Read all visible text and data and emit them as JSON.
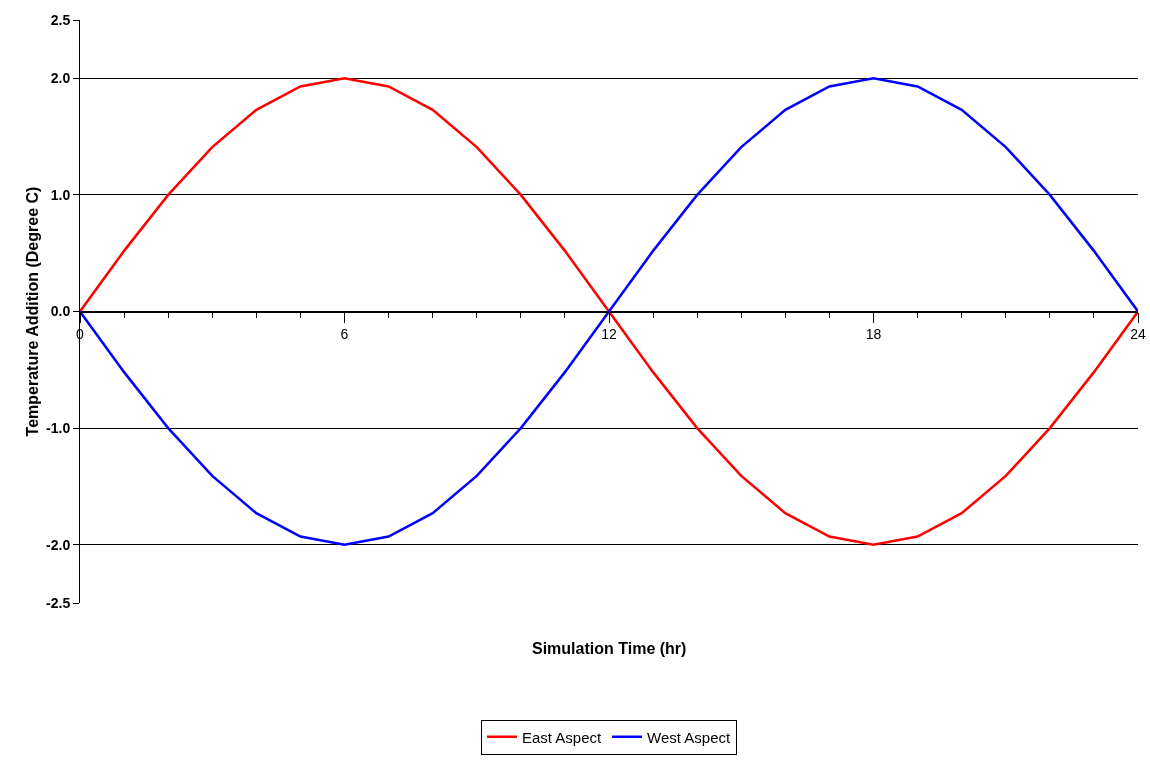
{
  "chart_data": {
    "type": "line",
    "xlabel": "Simulation Time (hr)",
    "ylabel": "Temperature Addition (Degree C)",
    "x": [
      0,
      1,
      2,
      3,
      4,
      5,
      6,
      7,
      8,
      9,
      10,
      11,
      12,
      13,
      14,
      15,
      16,
      17,
      18,
      19,
      20,
      21,
      22,
      23,
      24
    ],
    "series": [
      {
        "name": "East Aspect",
        "color": "#ff0000",
        "values": [
          0,
          0.52,
          1.0,
          1.41,
          1.73,
          1.93,
          2.0,
          1.93,
          1.73,
          1.41,
          1.0,
          0.52,
          0,
          -0.52,
          -1.0,
          -1.41,
          -1.73,
          -1.93,
          -2.0,
          -1.93,
          -1.73,
          -1.41,
          -1.0,
          -0.52,
          0
        ]
      },
      {
        "name": "West Aspect",
        "color": "#0000ff",
        "values": [
          0,
          -0.52,
          -1.0,
          -1.41,
          -1.73,
          -1.93,
          -2.0,
          -1.93,
          -1.73,
          -1.41,
          -1.0,
          -0.52,
          0,
          0.52,
          1.0,
          1.41,
          1.73,
          1.93,
          2.0,
          1.93,
          1.73,
          1.41,
          1.0,
          0.52,
          0
        ]
      }
    ],
    "xlim": [
      0,
      24
    ],
    "xticks": [
      0,
      6,
      12,
      18,
      24
    ],
    "ylim": [
      -2.5,
      2.5
    ],
    "yticks": [
      {
        "value": -2.5,
        "label": "-2.5"
      },
      {
        "value": -2,
        "label": "-2.0"
      },
      {
        "value": -1,
        "label": "-1.0"
      },
      {
        "value": 0,
        "label": "0.0"
      },
      {
        "value": 1,
        "label": "1.0"
      },
      {
        "value": 2,
        "label": "2.0"
      },
      {
        "value": 2.5,
        "label": "2.5"
      }
    ],
    "grid": "y",
    "legend": "bottom",
    "marker": "none",
    "line_style": "solid"
  }
}
